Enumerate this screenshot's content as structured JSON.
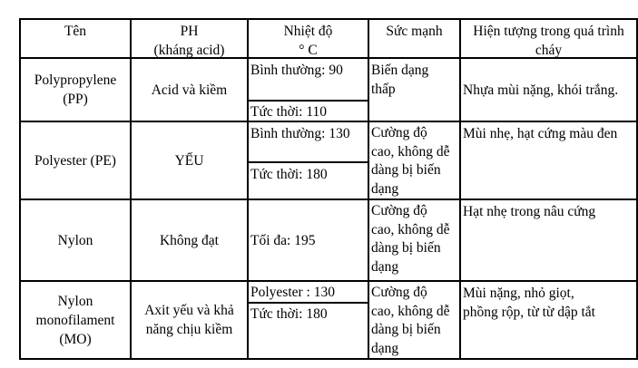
{
  "headers": [
    "Tên",
    "PH\n(kháng acid)",
    "Nhiệt độ\n° C",
    "Sức mạnh",
    "Hiện tượng trong quá trình\ncháy"
  ],
  "rows": [
    {
      "name": "Polypropylene\n(PP)",
      "ph": "Acid và kiềm",
      "temp": [
        "Bình thường: 90",
        "Tức thời: 110"
      ],
      "strength": "Biến dạng\nthấp",
      "burning": "Nhựa mùi nặng, khói trắng."
    },
    {
      "name": "Polyester (PE)",
      "ph": "YẾU",
      "temp": [
        "Bình thường: 130",
        "Tức thời: 180"
      ],
      "strength": "Cường độ\ncao, không dễ\ndàng bị biến\ndạng",
      "burning": "Mùi nhẹ, hạt cứng màu đen"
    },
    {
      "name": "Nylon",
      "ph": "Không đạt",
      "temp": [
        "Tối đa: 195"
      ],
      "strength": "Cường độ\ncao, không dễ\ndàng bị biến\ndạng",
      "burning": "Hạt nhẹ trong nâu cứng"
    },
    {
      "name": "Nylon\nmonofilament\n(MO)",
      "ph": "Axit yếu và khả\nnăng chịu kiềm",
      "temp": [
        "Polyester : 130",
        "Tức thời: 180"
      ],
      "strength": "Cường độ\ncao, không dễ\ndàng bị biến\ndạng",
      "burning": "Mùi nặng, nhỏ giọt,\nphồng rộp, từ từ dập tắt"
    }
  ]
}
